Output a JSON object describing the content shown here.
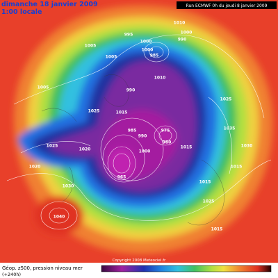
{
  "header": {
    "date": "dimanche 18 janvier 2009",
    "time": "1:00 locale",
    "run": "Run ECMWF 0h du jeudi 8 janvier 2009"
  },
  "footer": {
    "field": "Géop. z500, pression niveau mer",
    "lead": "(+240h)",
    "copyright": "Copyright 2008 Meteociel.fr"
  },
  "pressure_labels": [
    "1010",
    "1000",
    "995",
    "1000",
    "990",
    "1005",
    "1000",
    "985",
    "1005",
    "1010",
    "1005",
    "1025",
    "990",
    "1015",
    "1025",
    "985",
    "990",
    "975",
    "1000",
    "1020",
    "1025",
    "980",
    "965",
    "1015",
    "1015",
    "1020",
    "1030",
    "1015",
    "1035",
    "1040",
    "1025",
    "1030",
    "1015"
  ]
}
